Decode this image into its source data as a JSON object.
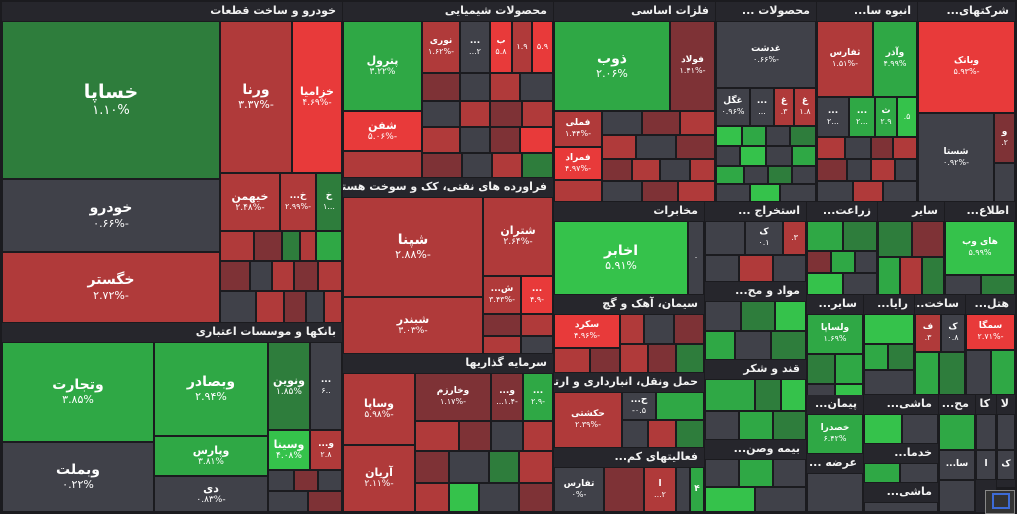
{
  "sections": {
    "auto": "خودرو و ساخت قطعات",
    "banks": "بانکها و موسسات اعتباری",
    "chem": "محصولات شیمیایی",
    "refine": "فراورده های نفتی، کک و سوخت هسته ای",
    "invest": "سرمایه گذاریها",
    "metals": "فلزات اساسی",
    "telecom": "مخابرات",
    "cement": "سیمان، آهک و گچ",
    "transport": "حمل ونقل، انبارداری و ارتباطات",
    "other_fin": "فعالیتهای کم...",
    "products": "محصولات ...",
    "mass": "انبوه سا...",
    "multi": "شرکتهای...",
    "mining": "استخراج ...",
    "farm": "زراعت...",
    "misc": "سایر",
    "info": "اطلاع...",
    "materials": "مواد و مح...",
    "sugar": "قند و شکر",
    "insurance": "بیمه وصن...",
    "other2": "سایر...",
    "rayaneh": "رایا...",
    "hotel": "هتل...",
    "build": "ساخت...",
    "contract": "پیمان...",
    "machine": "ماشی...",
    "medical": "مح...",
    "ceramic": "کا",
    "la": "لا",
    "services": "خدما...",
    "retail": "عرضه ...",
    "machine2": "ماشی..."
  },
  "tiles": {
    "khasapa": {
      "name": "خساپا",
      "pct": "۱.۱۰%"
    },
    "khodro": {
      "name": "خودرو",
      "pct": "-۰.۶۶%"
    },
    "khgostar": {
      "name": "خگستر",
      "pct": "-۲.۷۲%"
    },
    "vorna": {
      "name": "ورنا",
      "pct": "-۳.۳۷%"
    },
    "khazamia": {
      "name": "خزامیا",
      "pct": "-۴.۶۹%"
    },
    "kheyman": {
      "name": "خیهمن",
      "pct": "-۲.۴۸%"
    },
    "kh1": {
      "name": "خ...",
      "pct": "-۲.۹۹%"
    },
    "kh2": {
      "name": "خ",
      "pct": "...۱"
    },
    "vtejarat": {
      "name": "وتجارت",
      "pct": "۳.۸۵%"
    },
    "vbsader": {
      "name": "وبصادر",
      "pct": "۲.۹۴%"
    },
    "vbmelat": {
      "name": "وبملت",
      "pct": "۰.۲۲%"
    },
    "vparis": {
      "name": "وپارس",
      "pct": "۳.۸۱%"
    },
    "di": {
      "name": "دی",
      "pct": "-۰.۸۳%"
    },
    "vnovin": {
      "name": "ونوین",
      "pct": "۱.۸۵%"
    },
    "vsina": {
      "name": "وسینا",
      "pct": "۴.۰۸%"
    },
    "v_dots": {
      "name": "...",
      "pct": "..۶"
    },
    "v_small": {
      "name": "و...",
      "pct": "۲.۸"
    },
    "petrol": {
      "name": "پترول",
      "pct": "۳.۲۲%"
    },
    "shafan": {
      "name": "شفن",
      "pct": "-۵.۰۶%"
    },
    "nouri": {
      "name": "نوری",
      "pct": "-۱.۶۲%"
    },
    "chem_d": {
      "name": "...",
      "pct": "۲..."
    },
    "chem_b": {
      "name": "ب",
      "pct": "۵.۸"
    },
    "chem_b2": {
      "name": "",
      "pct": "۱.۹"
    },
    "chem_b3": {
      "name": "",
      "pct": "۵.۹"
    },
    "shepna": {
      "name": "شپنا",
      "pct": "-۲.۸۸%"
    },
    "shbandar": {
      "name": "شبندر",
      "pct": "-۳.۰۳%"
    },
    "shetran": {
      "name": "شتران",
      "pct": "-۲.۶۴%"
    },
    "sh_dots": {
      "name": "ش...",
      "pct": "-۳.۴۳%"
    },
    "ref_s": {
      "name": "...",
      "pct": "-۴.۹"
    },
    "vsapa": {
      "name": "وساپا",
      "pct": "-۵.۹۸%"
    },
    "arian": {
      "name": "آریان",
      "pct": "-۲.۱۱%"
    },
    "vkharazm": {
      "name": "وخارزم",
      "pct": "-۱.۱۷%"
    },
    "inv_v": {
      "name": "و...",
      "pct": "-۱.۴..."
    },
    "inv_d": {
      "name": "...",
      "pct": "-۲.۹"
    },
    "zob": {
      "name": "ذوب",
      "pct": "۲.۰۶%"
    },
    "fulad": {
      "name": "فولاد",
      "pct": "-۱.۴۱%"
    },
    "fameli": {
      "name": "فملی",
      "pct": "-۱.۴۴%"
    },
    "fmorad": {
      "name": "فمراد",
      "pct": "-۴.۹۷%"
    },
    "akhaber": {
      "name": "اخابر",
      "pct": "۵.۹۱%"
    },
    "tel_s": {
      "name": "",
      "pct": "۰"
    },
    "sekord": {
      "name": "سکرد",
      "pct": "-۴.۹۶%"
    },
    "hkeshti": {
      "name": "حکشتی",
      "pct": "-۲.۳۹%"
    },
    "h_dots": {
      "name": "ح...",
      "pct": "۰.۵-"
    },
    "tafarsa": {
      "name": "تفارس",
      "pct": "-۰%"
    },
    "of_a": {
      "name": "ا",
      "pct": "۲..."
    },
    "of_b": {
      "name": "۴",
      "pct": ""
    },
    "ghdasht": {
      "name": "غدشت",
      "pct": "-۰.۶۶%"
    },
    "ghegol": {
      "name": "غگل",
      "pct": "۰.۹۶%"
    },
    "prod_d": {
      "name": "...",
      "pct": "..."
    },
    "prod_gh": {
      "name": "غ",
      "pct": "۳."
    },
    "prod_gh2": {
      "name": "غ",
      "pct": "۱.۸"
    },
    "tfars": {
      "name": "ثفارس",
      "pct": "-۱.۵۱%"
    },
    "vazar": {
      "name": "وآذر",
      "pct": "۴.۹۹%"
    },
    "mass_s": {
      "name": "ث",
      "pct": "۲.۹"
    },
    "mass_s2": {
      "name": "",
      "pct": "۵."
    },
    "mass_d1": {
      "name": "...",
      "pct": "...۲"
    },
    "mass_d2": {
      "name": "...",
      "pct": "...۲"
    },
    "vbank": {
      "name": "وبانک",
      "pct": "-۵.۹۳%"
    },
    "shasta": {
      "name": "شستا",
      "pct": "-۰.۹۲%"
    },
    "multi_v": {
      "name": "و",
      "pct": "۲."
    },
    "min_k": {
      "name": "ک",
      "pct": "۰.۱"
    },
    "min_s": {
      "name": "",
      "pct": "۳."
    },
    "hiweb": {
      "name": "های وب",
      "pct": "۵.۹۹%"
    },
    "vlsapa": {
      "name": "ولساپا",
      "pct": "۱.۶۹%"
    },
    "khsdra": {
      "name": "خصدرا",
      "pct": "۶.۴۲%"
    },
    "smega": {
      "name": "سمگا",
      "pct": "-۲.۷۱%"
    },
    "f1": {
      "name": "ف",
      "pct": "۳."
    },
    "f2": {
      "name": "ک",
      "pct": "۰.۸"
    },
    "la_box": {
      "name": "لا",
      "pct": ""
    },
    "s_box": {
      "name": "سا...",
      "pct": ""
    },
    "a_box": {
      "name": "ا",
      "pct": ""
    },
    "k_box": {
      "name": "ک",
      "pct": ""
    }
  },
  "colors": {
    "dark_green": "#2e7d3c",
    "green": "#2fa845",
    "bright_green": "#35c24b",
    "dark_red": "#7e3236",
    "red": "#b03a3a",
    "bright_red": "#e83a3a",
    "neutral": "#404149"
  }
}
